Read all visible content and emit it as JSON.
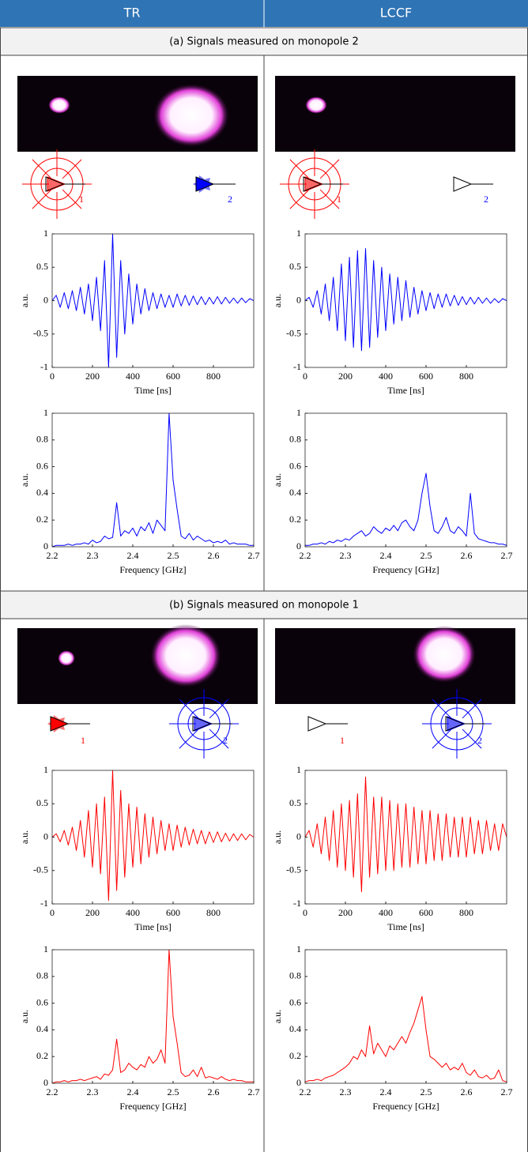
{
  "header": {
    "columns": [
      "TR",
      "LCCF"
    ]
  },
  "sections": [
    "(a) Signals measured on monopole 2",
    "(b) Signals measured on monopole 1"
  ],
  "antenna_labels": [
    "1",
    "2"
  ],
  "chart_data": [
    {
      "type": "line",
      "xlabel": "Time [ns]",
      "ylabel": "a.u.",
      "xlim": [
        0,
        1000
      ],
      "ylim": [
        -1,
        1
      ],
      "xticks": [
        0,
        200,
        400,
        600,
        800
      ],
      "yticks": [
        -1,
        -0.5,
        0,
        0.5,
        1
      ],
      "x": [
        0,
        20,
        40,
        60,
        80,
        100,
        120,
        140,
        160,
        180,
        200,
        220,
        240,
        260,
        280,
        300,
        320,
        340,
        360,
        380,
        400,
        420,
        440,
        460,
        480,
        500,
        520,
        540,
        560,
        580,
        600,
        620,
        640,
        660,
        680,
        700,
        720,
        740,
        760,
        780,
        800,
        820,
        840,
        860,
        880,
        900,
        920,
        940,
        960,
        980,
        1000
      ],
      "series": [
        {
          "color": "#0000ff",
          "values": [
            0,
            0.08,
            -0.1,
            0.12,
            -0.12,
            0.15,
            -0.15,
            0.2,
            -0.2,
            0.25,
            -0.3,
            0.35,
            -0.45,
            0.6,
            -1,
            1,
            -0.85,
            0.6,
            -0.5,
            0.4,
            -0.35,
            0.25,
            -0.2,
            0.18,
            -0.15,
            0.12,
            -0.12,
            0.1,
            -0.1,
            0.08,
            -0.1,
            0.1,
            -0.08,
            0.08,
            -0.07,
            0.07,
            -0.06,
            0.06,
            -0.06,
            0.05,
            -0.05,
            0.06,
            -0.05,
            0.05,
            -0.04,
            0.04,
            -0.04,
            0.04,
            -0.03,
            0.03,
            0
          ]
        }
      ]
    },
    {
      "type": "line",
      "xlabel": "Time [ns]",
      "ylabel": "a.u.",
      "xlim": [
        0,
        1000
      ],
      "ylim": [
        -1,
        1
      ],
      "xticks": [
        0,
        200,
        400,
        600,
        800
      ],
      "yticks": [
        -1,
        -0.5,
        0,
        0.5,
        1
      ],
      "x": [
        0,
        20,
        40,
        60,
        80,
        100,
        120,
        140,
        160,
        180,
        200,
        220,
        240,
        260,
        280,
        300,
        320,
        340,
        360,
        380,
        400,
        420,
        440,
        460,
        480,
        500,
        520,
        540,
        560,
        580,
        600,
        620,
        640,
        660,
        680,
        700,
        720,
        740,
        760,
        780,
        800,
        820,
        840,
        860,
        880,
        900,
        920,
        940,
        960,
        980,
        1000
      ],
      "series": [
        {
          "color": "#0000ff",
          "values": [
            0,
            0.05,
            -0.1,
            0.15,
            -0.2,
            0.25,
            -0.3,
            0.35,
            -0.45,
            0.55,
            -0.6,
            0.65,
            -0.7,
            0.75,
            -0.75,
            0.78,
            -0.7,
            0.6,
            -0.55,
            0.5,
            -0.45,
            0.4,
            -0.35,
            0.35,
            -0.3,
            0.3,
            -0.25,
            0.2,
            -0.2,
            0.15,
            -0.15,
            0.12,
            -0.12,
            0.1,
            -0.1,
            0.1,
            -0.08,
            0.08,
            -0.07,
            0.06,
            -0.06,
            0.05,
            -0.05,
            0.05,
            -0.04,
            0.04,
            -0.04,
            0.03,
            -0.03,
            0.03,
            0
          ]
        }
      ]
    },
    {
      "type": "line",
      "xlabel": "Frequency [GHz]",
      "ylabel": "a.u.",
      "xlim": [
        2.2,
        2.7
      ],
      "ylim": [
        0,
        1
      ],
      "xticks": [
        2.2,
        2.3,
        2.4,
        2.5,
        2.6,
        2.7
      ],
      "yticks": [
        0,
        0.2,
        0.4,
        0.6,
        0.8,
        1
      ],
      "x": [
        2.2,
        2.21,
        2.22,
        2.23,
        2.24,
        2.25,
        2.26,
        2.27,
        2.28,
        2.29,
        2.3,
        2.31,
        2.32,
        2.33,
        2.34,
        2.35,
        2.36,
        2.37,
        2.38,
        2.39,
        2.4,
        2.41,
        2.42,
        2.43,
        2.44,
        2.45,
        2.46,
        2.47,
        2.48,
        2.49,
        2.5,
        2.51,
        2.52,
        2.53,
        2.54,
        2.55,
        2.56,
        2.57,
        2.58,
        2.59,
        2.6,
        2.61,
        2.62,
        2.63,
        2.64,
        2.65,
        2.66,
        2.67,
        2.68,
        2.69,
        2.7
      ],
      "series": [
        {
          "color": "#0000ff",
          "values": [
            0,
            0.01,
            0.01,
            0.01,
            0.02,
            0.01,
            0.02,
            0.02,
            0.03,
            0.02,
            0.05,
            0.03,
            0.04,
            0.08,
            0.06,
            0.07,
            0.33,
            0.08,
            0.12,
            0.1,
            0.14,
            0.08,
            0.15,
            0.12,
            0.18,
            0.1,
            0.2,
            0.16,
            0.12,
            1,
            0.5,
            0.28,
            0.08,
            0.06,
            0.1,
            0.05,
            0.08,
            0.06,
            0.04,
            0.05,
            0.03,
            0.04,
            0.03,
            0.05,
            0.02,
            0.03,
            0.02,
            0.02,
            0.02,
            0.01,
            0.01
          ]
        }
      ]
    },
    {
      "type": "line",
      "xlabel": "Frequency [GHz]",
      "ylabel": "a.u.",
      "xlim": [
        2.2,
        2.7
      ],
      "ylim": [
        0,
        1
      ],
      "xticks": [
        2.2,
        2.3,
        2.4,
        2.5,
        2.6,
        2.7
      ],
      "yticks": [
        0,
        0.2,
        0.4,
        0.6,
        0.8,
        1
      ],
      "x": [
        2.2,
        2.21,
        2.22,
        2.23,
        2.24,
        2.25,
        2.26,
        2.27,
        2.28,
        2.29,
        2.3,
        2.31,
        2.32,
        2.33,
        2.34,
        2.35,
        2.36,
        2.37,
        2.38,
        2.39,
        2.4,
        2.41,
        2.42,
        2.43,
        2.44,
        2.45,
        2.46,
        2.47,
        2.48,
        2.49,
        2.5,
        2.51,
        2.52,
        2.53,
        2.54,
        2.55,
        2.56,
        2.57,
        2.58,
        2.59,
        2.6,
        2.61,
        2.62,
        2.63,
        2.64,
        2.65,
        2.66,
        2.67,
        2.68,
        2.69,
        2.7
      ],
      "series": [
        {
          "color": "#0000ff",
          "values": [
            0.01,
            0.01,
            0.02,
            0.02,
            0.03,
            0.02,
            0.04,
            0.03,
            0.05,
            0.04,
            0.06,
            0.05,
            0.08,
            0.1,
            0.12,
            0.08,
            0.1,
            0.15,
            0.12,
            0.1,
            0.14,
            0.12,
            0.16,
            0.12,
            0.18,
            0.2,
            0.15,
            0.12,
            0.2,
            0.4,
            0.55,
            0.3,
            0.12,
            0.1,
            0.15,
            0.22,
            0.12,
            0.1,
            0.15,
            0.12,
            0.08,
            0.4,
            0.1,
            0.06,
            0.05,
            0.04,
            0.03,
            0.03,
            0.02,
            0.02,
            0.01
          ]
        }
      ]
    },
    {
      "type": "line",
      "xlabel": "Time [ns]",
      "ylabel": "a.u.",
      "xlim": [
        0,
        1000
      ],
      "ylim": [
        -1,
        1
      ],
      "xticks": [
        0,
        200,
        400,
        600,
        800
      ],
      "yticks": [
        -1,
        -0.5,
        0,
        0.5,
        1
      ],
      "x": [
        0,
        20,
        40,
        60,
        80,
        100,
        120,
        140,
        160,
        180,
        200,
        220,
        240,
        260,
        280,
        300,
        320,
        340,
        360,
        380,
        400,
        420,
        440,
        460,
        480,
        500,
        520,
        540,
        560,
        580,
        600,
        620,
        640,
        660,
        680,
        700,
        720,
        740,
        760,
        780,
        800,
        820,
        840,
        860,
        880,
        900,
        920,
        940,
        960,
        980,
        1000
      ],
      "series": [
        {
          "color": "#ff0000",
          "values": [
            0,
            0.05,
            -0.07,
            0.1,
            -0.12,
            0.15,
            -0.2,
            0.25,
            -0.3,
            0.4,
            -0.45,
            0.5,
            -0.55,
            0.6,
            -0.95,
            1,
            -0.8,
            0.7,
            -0.6,
            0.5,
            -0.45,
            0.45,
            -0.4,
            0.35,
            -0.3,
            0.3,
            -0.25,
            0.25,
            -0.2,
            0.2,
            -0.2,
            0.18,
            -0.15,
            0.15,
            -0.12,
            0.12,
            -0.1,
            0.1,
            -0.1,
            0.08,
            -0.08,
            0.08,
            -0.07,
            0.06,
            -0.06,
            0.05,
            -0.05,
            0.05,
            -0.04,
            0.04,
            0
          ]
        }
      ]
    },
    {
      "type": "line",
      "xlabel": "Time [ns]",
      "ylabel": "a.u.",
      "xlim": [
        0,
        1000
      ],
      "ylim": [
        -1,
        1
      ],
      "xticks": [
        0,
        200,
        400,
        600,
        800
      ],
      "yticks": [
        -1,
        -0.5,
        0,
        0.5,
        1
      ],
      "x": [
        0,
        20,
        40,
        60,
        80,
        100,
        120,
        140,
        160,
        180,
        200,
        220,
        240,
        260,
        280,
        300,
        320,
        340,
        360,
        380,
        400,
        420,
        440,
        460,
        480,
        500,
        520,
        540,
        560,
        580,
        600,
        620,
        640,
        660,
        680,
        700,
        720,
        740,
        760,
        780,
        800,
        820,
        840,
        860,
        880,
        900,
        920,
        940,
        960,
        980,
        1000
      ],
      "series": [
        {
          "color": "#ff0000",
          "values": [
            0,
            0.1,
            -0.15,
            0.2,
            -0.25,
            0.3,
            -0.35,
            0.4,
            -0.45,
            0.5,
            -0.5,
            0.55,
            -0.6,
            0.65,
            -0.82,
            0.9,
            -0.6,
            0.6,
            -0.55,
            0.6,
            -0.5,
            0.55,
            -0.5,
            0.5,
            -0.45,
            0.5,
            -0.45,
            0.45,
            -0.4,
            0.4,
            -0.4,
            0.4,
            -0.35,
            0.35,
            -0.35,
            0.35,
            -0.3,
            0.3,
            -0.3,
            0.3,
            -0.3,
            0.3,
            -0.25,
            0.25,
            -0.25,
            0.25,
            -0.2,
            0.2,
            -0.2,
            0.2,
            0
          ]
        }
      ]
    },
    {
      "type": "line",
      "xlabel": "Frequency [GHz]",
      "ylabel": "a.u.",
      "xlim": [
        2.2,
        2.7
      ],
      "ylim": [
        0,
        1
      ],
      "xticks": [
        2.2,
        2.3,
        2.4,
        2.5,
        2.6,
        2.7
      ],
      "yticks": [
        0,
        0.2,
        0.4,
        0.6,
        0.8,
        1
      ],
      "x": [
        2.2,
        2.21,
        2.22,
        2.23,
        2.24,
        2.25,
        2.26,
        2.27,
        2.28,
        2.29,
        2.3,
        2.31,
        2.32,
        2.33,
        2.34,
        2.35,
        2.36,
        2.37,
        2.38,
        2.39,
        2.4,
        2.41,
        2.42,
        2.43,
        2.44,
        2.45,
        2.46,
        2.47,
        2.48,
        2.49,
        2.5,
        2.51,
        2.52,
        2.53,
        2.54,
        2.55,
        2.56,
        2.57,
        2.58,
        2.59,
        2.6,
        2.61,
        2.62,
        2.63,
        2.64,
        2.65,
        2.66,
        2.67,
        2.68,
        2.69,
        2.7
      ],
      "series": [
        {
          "color": "#ff0000",
          "values": [
            0,
            0.01,
            0.01,
            0.02,
            0.01,
            0.02,
            0.02,
            0.03,
            0.02,
            0.03,
            0.04,
            0.05,
            0.03,
            0.07,
            0.06,
            0.1,
            0.33,
            0.08,
            0.1,
            0.15,
            0.12,
            0.1,
            0.14,
            0.12,
            0.2,
            0.15,
            0.18,
            0.25,
            0.15,
            1,
            0.5,
            0.3,
            0.08,
            0.05,
            0.06,
            0.1,
            0.05,
            0.12,
            0.04,
            0.05,
            0.04,
            0.03,
            0.05,
            0.03,
            0.02,
            0.03,
            0.02,
            0.02,
            0.01,
            0.01,
            0.01
          ]
        }
      ]
    },
    {
      "type": "line",
      "xlabel": "Frequency [GHz]",
      "ylabel": "a.u.",
      "xlim": [
        2.2,
        2.7
      ],
      "ylim": [
        0,
        1
      ],
      "xticks": [
        2.2,
        2.3,
        2.4,
        2.5,
        2.6,
        2.7
      ],
      "yticks": [
        0,
        0.2,
        0.4,
        0.6,
        0.8,
        1
      ],
      "x": [
        2.2,
        2.21,
        2.22,
        2.23,
        2.24,
        2.25,
        2.26,
        2.27,
        2.28,
        2.29,
        2.3,
        2.31,
        2.32,
        2.33,
        2.34,
        2.35,
        2.36,
        2.37,
        2.38,
        2.39,
        2.4,
        2.41,
        2.42,
        2.43,
        2.44,
        2.45,
        2.46,
        2.47,
        2.48,
        2.49,
        2.5,
        2.51,
        2.52,
        2.53,
        2.54,
        2.55,
        2.56,
        2.57,
        2.58,
        2.59,
        2.6,
        2.61,
        2.62,
        2.63,
        2.64,
        2.65,
        2.66,
        2.67,
        2.68,
        2.69,
        2.7
      ],
      "series": [
        {
          "color": "#ff0000",
          "values": [
            0.01,
            0.02,
            0.02,
            0.03,
            0.02,
            0.04,
            0.05,
            0.06,
            0.08,
            0.1,
            0.12,
            0.15,
            0.2,
            0.18,
            0.25,
            0.2,
            0.43,
            0.22,
            0.3,
            0.25,
            0.2,
            0.28,
            0.25,
            0.3,
            0.35,
            0.3,
            0.38,
            0.45,
            0.55,
            0.65,
            0.4,
            0.2,
            0.18,
            0.15,
            0.12,
            0.15,
            0.1,
            0.12,
            0.1,
            0.15,
            0.08,
            0.06,
            0.1,
            0.05,
            0.04,
            0.06,
            0.03,
            0.04,
            0.1,
            0.02,
            0.01
          ]
        }
      ]
    }
  ]
}
